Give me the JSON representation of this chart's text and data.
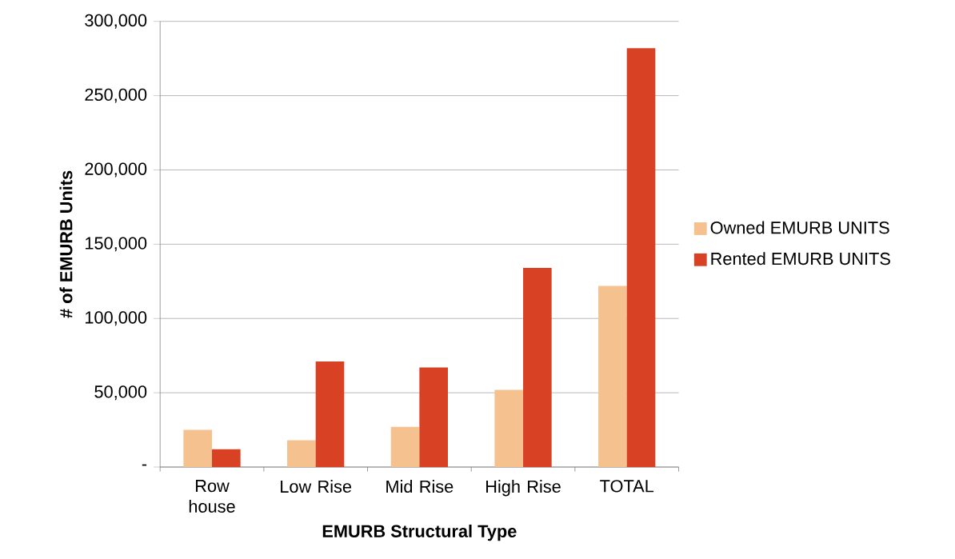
{
  "chart_data": {
    "type": "bar",
    "xlabel": "EMURB Structural Type",
    "ylabel": "# of EMURB Units",
    "categories": [
      "Row house",
      "Low Rise",
      "Mid Rise",
      "High Rise",
      "TOTAL"
    ],
    "series": [
      {
        "name": "Owned EMURB UNITS",
        "color": "#f4c18f",
        "values": [
          25000,
          18000,
          27000,
          52000,
          122000
        ]
      },
      {
        "name": "Rented EMURB UNITS",
        "color": "#d94125",
        "values": [
          12000,
          71000,
          67000,
          134000,
          282000
        ]
      }
    ],
    "ylim": [
      0,
      300000
    ],
    "yticks": [
      {
        "value": 0,
        "label": "-"
      },
      {
        "value": 50000,
        "label": "50,000"
      },
      {
        "value": 100000,
        "label": "100,000"
      },
      {
        "value": 150000,
        "label": "150,000"
      },
      {
        "value": 200000,
        "label": "200,000"
      },
      {
        "value": 250000,
        "label": "250,000"
      },
      {
        "value": 300000,
        "label": "300,000"
      }
    ],
    "grid": "y",
    "legend": "right"
  }
}
